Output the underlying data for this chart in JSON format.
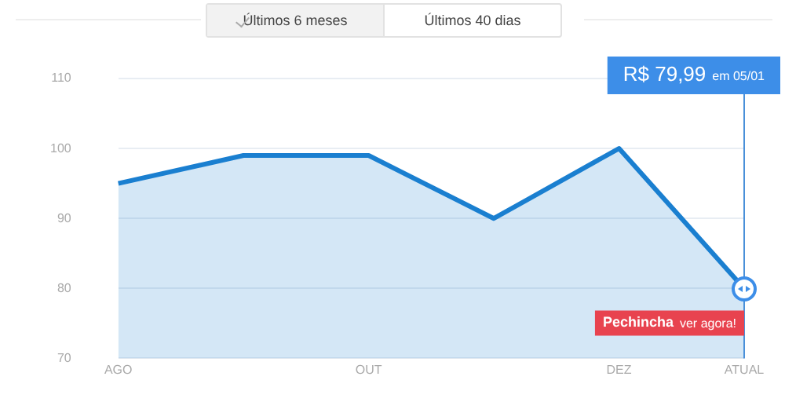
{
  "chart_data": {
    "type": "area",
    "categories": [
      "AGO",
      null,
      "OUT",
      null,
      "DEZ",
      "ATUAL"
    ],
    "series": [
      {
        "color": "#1a7fd0",
        "values": [
          95,
          99,
          99,
          90,
          100,
          79.99
        ]
      }
    ],
    "ylim": [
      70,
      110
    ],
    "yticks": [
      70,
      80,
      90,
      100,
      110
    ],
    "grid": "y",
    "legend": false,
    "marker": "none",
    "line_style": "solid",
    "ref_lines": [
      {
        "axis": "x",
        "value": "ATUAL",
        "color": "#4a90d9"
      }
    ],
    "annotations": [
      "Últimos 6 meses",
      "Últimos 40 dias",
      "R$ 79,99",
      "em 05/01",
      "Pechincha",
      "ver agora!"
    ]
  }
}
